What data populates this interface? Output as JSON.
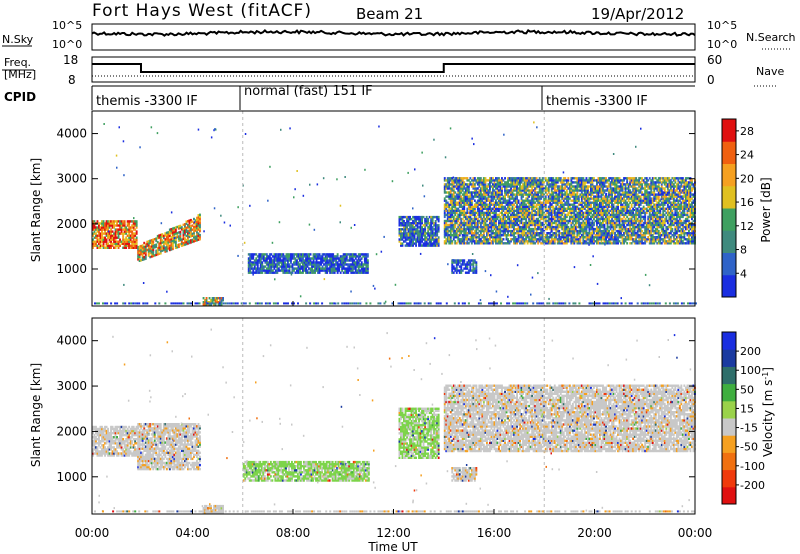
{
  "header": {
    "title": "Fort Hays West (fitACF)",
    "beam": "Beam 21",
    "date": "19/Apr/2012"
  },
  "noise_panel": {
    "left_label": "N.Sky",
    "right_label": "N.Search",
    "left_ticks": [
      "10^5",
      "10^0"
    ],
    "right_ticks": [
      "10^5",
      "10^0"
    ]
  },
  "freq_panel": {
    "left_label_1": "Freq.",
    "left_label_2": "[MHz]",
    "right_label": "Nave",
    "left_ticks": [
      "18",
      "8"
    ],
    "right_ticks": [
      "60",
      "0"
    ],
    "freq_steps": [
      {
        "t": 0.0,
        "level": "high"
      },
      {
        "t": 1.95,
        "level": "low"
      },
      {
        "t": 14.0,
        "level": "high"
      }
    ]
  },
  "cpid": {
    "label": "CPID",
    "segments": [
      {
        "text": "themis -3300 IF",
        "start": 0.0
      },
      {
        "text": "normal (fast) 151 IF",
        "start": 6.0
      },
      {
        "text": "themis -3300 IF",
        "start": 18.0
      }
    ]
  },
  "colors": {
    "power_scale": [
      "#1a2ee0",
      "#2f63c8",
      "#3f8a7e",
      "#3fa060",
      "#e0c020",
      "#f5a020",
      "#f06010",
      "#e01010"
    ],
    "velocity_scale": [
      "#e01010",
      "#f03a0c",
      "#f07010",
      "#f5a020",
      "#c8c8c8",
      "#9ad24a",
      "#3fae3f",
      "#2e6e6a",
      "#1a3aa0",
      "#1a2ee0"
    ],
    "velocity_main": "#c8c8c8",
    "velocity_positive": "#7dd44a"
  },
  "chart_data": [
    {
      "type": "heatmap",
      "name": "power",
      "ylabel": "Slant Range [km]",
      "xlim": [
        0,
        24
      ],
      "ylim": [
        180,
        4500
      ],
      "yticks": [
        "1000",
        "2000",
        "3000",
        "4000"
      ],
      "colorbar_label": "Power [dB]",
      "colorbar_ticks": [
        "4",
        "8",
        "12",
        "16",
        "20",
        "24",
        "28"
      ],
      "colorbar_range": [
        0,
        30
      ],
      "regions": [
        {
          "t0": 0.0,
          "t1": 1.8,
          "r0": 1450,
          "r1": 2050,
          "intensity": 0.75
        },
        {
          "t0": 1.8,
          "t1": 4.3,
          "r0": 1150,
          "r1": 2150,
          "intensity": 0.6,
          "slope": "rising"
        },
        {
          "t0": 4.4,
          "t1": 5.2,
          "r0": 200,
          "r1": 350,
          "intensity": 0.5
        },
        {
          "t0": 6.2,
          "t1": 11.0,
          "r0": 900,
          "r1": 1350,
          "intensity": 0.15
        },
        {
          "t0": 12.2,
          "t1": 13.8,
          "r0": 1500,
          "r1": 2150,
          "intensity": 0.2
        },
        {
          "t0": 14.0,
          "t1": 24.0,
          "r0": 1550,
          "r1": 3000,
          "intensity": 0.35
        },
        {
          "t0": 14.3,
          "t1": 15.3,
          "r0": 900,
          "r1": 1200,
          "intensity": 0.1
        }
      ]
    },
    {
      "type": "heatmap",
      "name": "velocity",
      "ylabel": "Slant Range [km]",
      "xlabel": "Time UT",
      "xlim": [
        0,
        24
      ],
      "ylim": [
        180,
        4500
      ],
      "xticks": [
        "00:00",
        "04:00",
        "08:00",
        "12:00",
        "16:00",
        "20:00",
        "00:00"
      ],
      "yticks": [
        "1000",
        "2000",
        "3000",
        "4000"
      ],
      "colorbar_label": "Velocity [m s^-1]",
      "colorbar_ticks": [
        "200",
        "100",
        "50",
        "15",
        "-15",
        "-50",
        "-100",
        "-200"
      ],
      "colorbar_range": [
        -250,
        250
      ],
      "regions": [
        {
          "t0": 0.0,
          "t1": 1.8,
          "r0": 1450,
          "r1": 2100,
          "velocity": 0
        },
        {
          "t0": 1.8,
          "t1": 4.3,
          "r0": 1150,
          "r1": 2150,
          "velocity": 0
        },
        {
          "t0": 4.4,
          "t1": 5.2,
          "r0": 200,
          "r1": 350,
          "velocity": 0
        },
        {
          "t0": 6.0,
          "t1": 11.0,
          "r0": 900,
          "r1": 1350,
          "velocity": 30
        },
        {
          "t0": 12.2,
          "t1": 13.8,
          "r0": 1400,
          "r1": 2500,
          "velocity": 40
        },
        {
          "t0": 14.0,
          "t1": 24.0,
          "r0": 1550,
          "r1": 3000,
          "velocity": 0
        },
        {
          "t0": 14.3,
          "t1": 15.3,
          "r0": 900,
          "r1": 1200,
          "velocity": 0
        }
      ]
    }
  ]
}
